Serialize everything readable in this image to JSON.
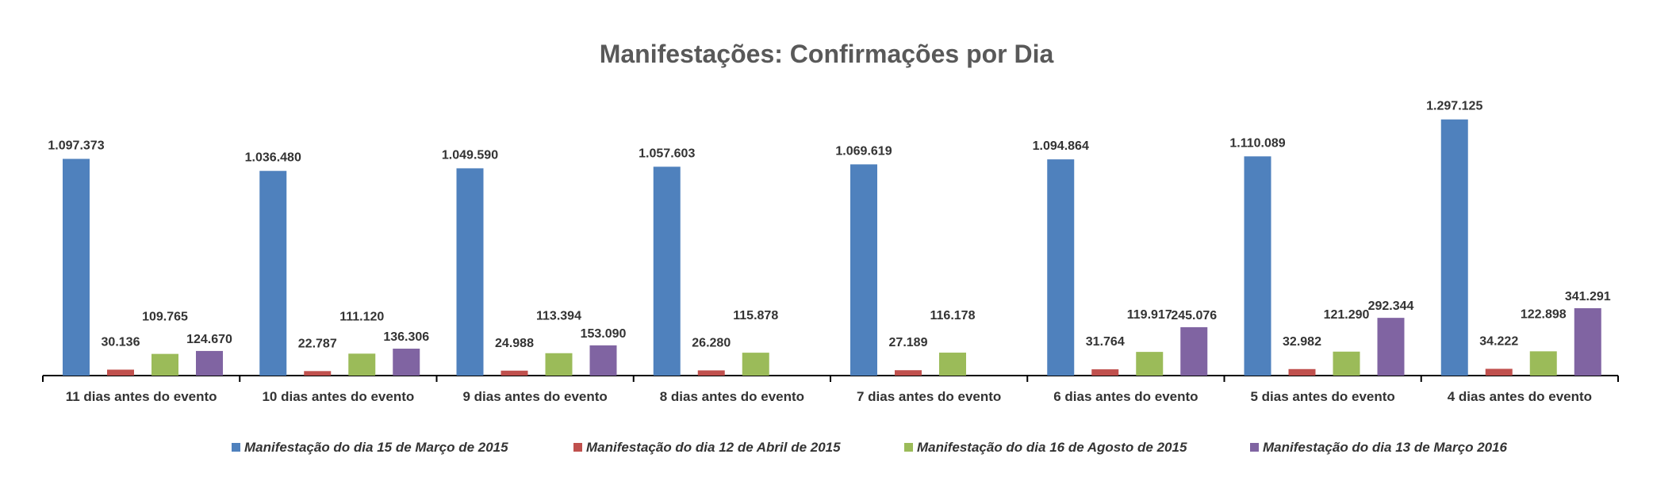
{
  "chart_data": {
    "type": "bar",
    "title": "Manifestações: Confirmações por Dia",
    "categories": [
      "11 dias antes do evento",
      "10 dias antes do evento",
      "9 dias antes do evento",
      "8 dias antes do evento",
      "7 dias antes do evento",
      "6 dias antes do evento",
      "5 dias antes do evento",
      "4 dias antes do evento"
    ],
    "series": [
      {
        "name": "Manifestação do dia 15 de Março de 2015",
        "color": "#4F81BD",
        "values": [
          1097373,
          1036480,
          1049590,
          1057603,
          1069619,
          1094864,
          1110089,
          1297125
        ],
        "labels": [
          "1.097.373",
          "1.036.480",
          "1.049.590",
          "1.057.603",
          "1.069.619",
          "1.094.864",
          "1.110.089",
          "1.297.125"
        ]
      },
      {
        "name": "Manifestação do dia 12 de Abril de 2015",
        "color": "#C0504D",
        "values": [
          30136,
          22787,
          24988,
          26280,
          27189,
          31764,
          32982,
          34222
        ],
        "labels": [
          "30.136",
          "22.787",
          "24.988",
          "26.280",
          "27.189",
          "31.764",
          "32.982",
          "34.222"
        ]
      },
      {
        "name": "Manifestação do dia 16 de Agosto de 2015",
        "color": "#9BBB59",
        "values": [
          109765,
          111120,
          113394,
          115878,
          116178,
          119917,
          121290,
          122898
        ],
        "labels": [
          "109.765",
          "111.120",
          "113.394",
          "115.878",
          "116.178",
          "119.917",
          "121.290",
          "122.898"
        ]
      },
      {
        "name": "Manifestação do dia 13 de Março 2016",
        "color": "#8064A2",
        "values": [
          124670,
          136306,
          153090,
          null,
          null,
          245076,
          292344,
          341291
        ],
        "labels": [
          "124.670",
          "136.306",
          "153.090",
          "",
          "",
          "245.076",
          "292.344",
          "341.291"
        ]
      }
    ],
    "ylim": [
      0,
      1300000
    ],
    "grid": false,
    "legend_position": "bottom"
  }
}
